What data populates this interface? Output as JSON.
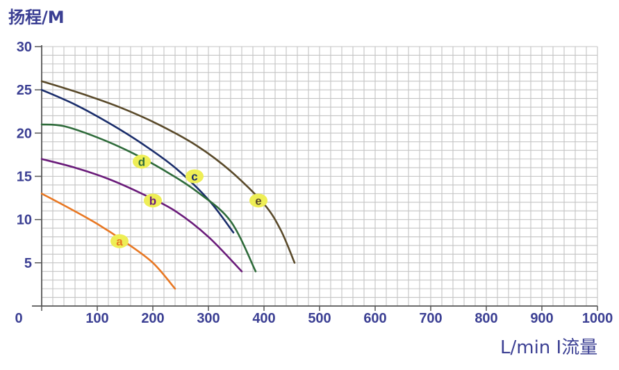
{
  "chart_data": {
    "type": "line",
    "ylabel": "扬程/M",
    "xlabel": "L/min I流量",
    "xlim": [
      0,
      1000
    ],
    "ylim": [
      0,
      30
    ],
    "x_ticks": [
      0,
      100,
      200,
      300,
      400,
      500,
      600,
      700,
      800,
      900,
      1000
    ],
    "y_ticks": [
      5,
      10,
      15,
      20,
      25,
      30
    ],
    "grid": true,
    "colors": {
      "axis_text": "#3b3f93",
      "grid": "#c4c4c4",
      "axis": "#555555",
      "label_bg": "#eeee55"
    },
    "series": [
      {
        "name": "a",
        "color": "#e87722",
        "points": [
          [
            0,
            13.0
          ],
          [
            50,
            11.3
          ],
          [
            100,
            9.5
          ],
          [
            150,
            7.4
          ],
          [
            200,
            5.0
          ],
          [
            240,
            2.0
          ]
        ],
        "label_at": [
          140,
          7.5
        ]
      },
      {
        "name": "b",
        "color": "#6a1b7a",
        "points": [
          [
            0,
            17.0
          ],
          [
            60,
            16.0
          ],
          [
            120,
            14.7
          ],
          [
            180,
            13.0
          ],
          [
            240,
            11.0
          ],
          [
            300,
            8.0
          ],
          [
            360,
            4.0
          ]
        ],
        "label_at": [
          200,
          12.2
        ]
      },
      {
        "name": "c",
        "color": "#1a2d6b",
        "points": [
          [
            0,
            25.0
          ],
          [
            60,
            23.3
          ],
          [
            120,
            21.2
          ],
          [
            180,
            18.8
          ],
          [
            240,
            16.0
          ],
          [
            300,
            12.3
          ],
          [
            345,
            8.5
          ]
        ],
        "label_at": [
          275,
          15.0
        ]
      },
      {
        "name": "d",
        "color": "#2e6b3a",
        "points": [
          [
            0,
            21.0
          ],
          [
            40,
            20.8
          ],
          [
            100,
            19.5
          ],
          [
            160,
            17.8
          ],
          [
            220,
            15.7
          ],
          [
            280,
            13.2
          ],
          [
            340,
            9.8
          ],
          [
            385,
            4.0
          ]
        ],
        "label_at": [
          180,
          16.7
        ]
      },
      {
        "name": "e",
        "color": "#5a4a2a",
        "points": [
          [
            0,
            26.0
          ],
          [
            70,
            24.6
          ],
          [
            140,
            23.0
          ],
          [
            210,
            21.0
          ],
          [
            280,
            18.5
          ],
          [
            340,
            15.6
          ],
          [
            400,
            11.8
          ],
          [
            430,
            8.8
          ],
          [
            455,
            5.0
          ]
        ],
        "label_at": [
          390,
          12.2
        ]
      }
    ]
  }
}
